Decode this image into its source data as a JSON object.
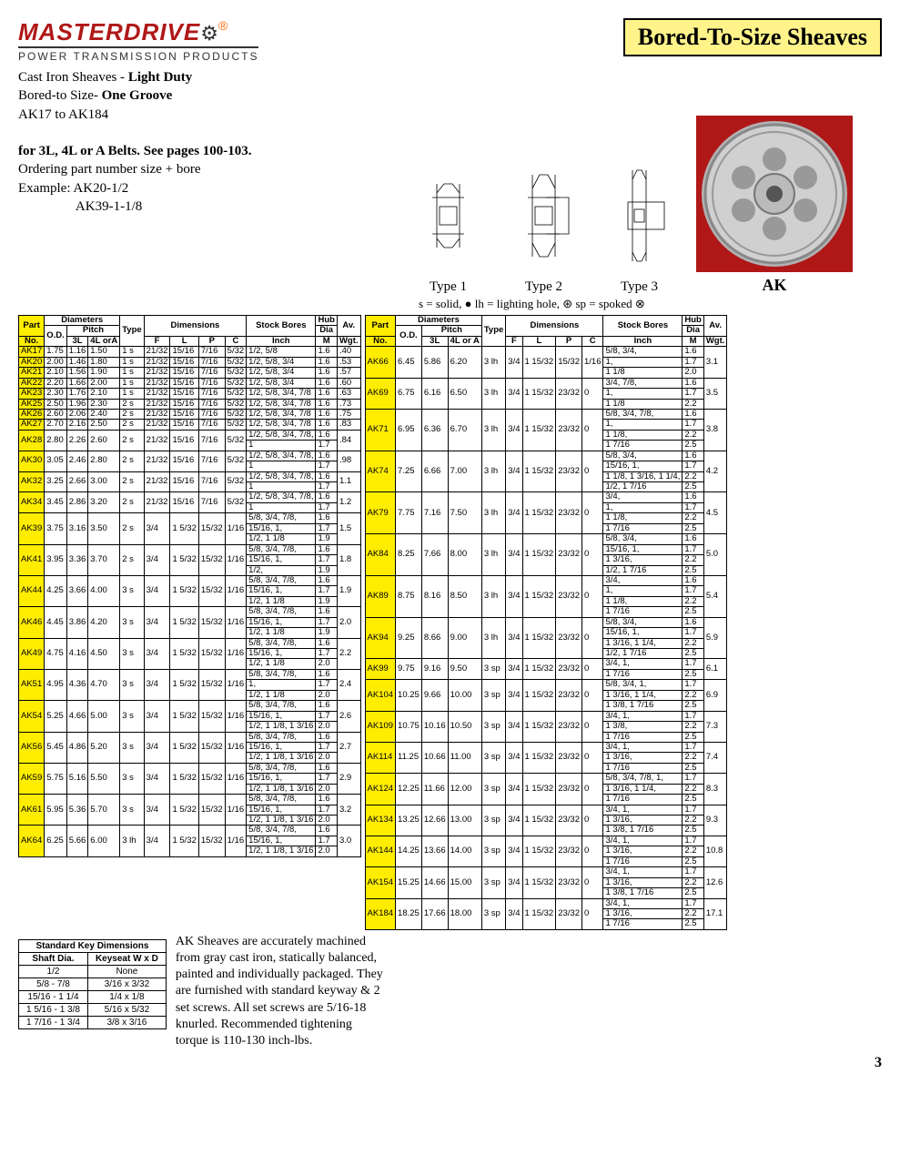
{
  "logo": {
    "main": "MASTERDRIVE",
    "sub": "POWER TRANSMISSION PRODUCTS"
  },
  "title": "Bored-To-Size Sheaves",
  "intro": {
    "l1a": "Cast Iron Sheaves - ",
    "l1b": "Light Duty",
    "l2a": "Bored-to Size- ",
    "l2b": "One Groove",
    "l3": "AK17 to AK184",
    "l4": "for 3L, 4L or A Belts. See pages 100-103.",
    "l5": "Ordering part number size + bore",
    "l6": "Example:  AK20-1/2",
    "l7": "                 AK39-1-1/8"
  },
  "typeLabels": [
    "Type 1",
    "Type 2",
    "Type 3"
  ],
  "photoLabel": "AK",
  "legend": "s = solid, ● lh = lighting hole, ⊛ sp = spoked ⊗",
  "headers": {
    "diameters": "Diameters",
    "pitch": "Pitch",
    "dimensions": "Dimensions",
    "stockBores": "Stock Bores",
    "hub": "Hub",
    "part": "Part",
    "no": "No.",
    "od": "O.D.",
    "3l": "3L",
    "4lora": "4L orA",
    "4lora2": "4L or A",
    "type": "Type",
    "f": "F",
    "l": "L",
    "p": "P",
    "c": "C",
    "inch": "Inch",
    "dia": "Dia",
    "m": "M",
    "av": "Av.",
    "wgt": "Wgt."
  },
  "table1": [
    {
      "pn": "AK17",
      "od": "1.75",
      "p3": "1.16",
      "p4": "1.50",
      "ty": "1 s",
      "f": "21/32",
      "l": "15/16",
      "p": "7/16",
      "c": "5/32",
      "bores": [
        "1/2, 5/8"
      ],
      "dia": [
        "1.6"
      ],
      "wgt": ".40"
    },
    {
      "pn": "AK20",
      "od": "2.00",
      "p3": "1.46",
      "p4": "1.80",
      "ty": "1 s",
      "f": "21/32",
      "l": "15/16",
      "p": "7/16",
      "c": "5/32",
      "bores": [
        "1/2, 5/8, 3/4"
      ],
      "dia": [
        "1.6"
      ],
      "wgt": ".53"
    },
    {
      "pn": "AK21",
      "od": "2.10",
      "p3": "1.56",
      "p4": "1.90",
      "ty": "1 s",
      "f": "21/32",
      "l": "15/16",
      "p": "7/16",
      "c": "5/32",
      "bores": [
        "1/2, 5/8, 3/4"
      ],
      "dia": [
        "1.6"
      ],
      "wgt": ".57"
    },
    {
      "pn": "AK22",
      "od": "2.20",
      "p3": "1.66",
      "p4": "2.00",
      "ty": "1 s",
      "f": "21/32",
      "l": "15/16",
      "p": "7/16",
      "c": "5/32",
      "bores": [
        "1/2, 5/8, 3/4"
      ],
      "dia": [
        "1.6"
      ],
      "wgt": ".60"
    },
    {
      "pn": "AK23",
      "od": "2.30",
      "p3": "1.76",
      "p4": "2.10",
      "ty": "1 s",
      "f": "21/32",
      "l": "15/16",
      "p": "7/16",
      "c": "5/32",
      "bores": [
        "1/2, 5/8, 3/4, 7/8"
      ],
      "dia": [
        "1.6"
      ],
      "wgt": ".63"
    },
    {
      "pn": "AK25",
      "od": "2.50",
      "p3": "1.96",
      "p4": "2.30",
      "ty": "2 s",
      "f": "21/32",
      "l": "15/16",
      "p": "7/16",
      "c": "5/32",
      "bores": [
        "1/2, 5/8, 3/4, 7/8"
      ],
      "dia": [
        "1.6"
      ],
      "wgt": ".73"
    },
    {
      "pn": "AK26",
      "od": "2.60",
      "p3": "2.06",
      "p4": "2.40",
      "ty": "2 s",
      "f": "21/32",
      "l": "15/16",
      "p": "7/16",
      "c": "5/32",
      "bores": [
        "1/2, 5/8, 3/4, 7/8"
      ],
      "dia": [
        "1.6"
      ],
      "wgt": ".75"
    },
    {
      "pn": "AK27",
      "od": "2.70",
      "p3": "2.16",
      "p4": "2.50",
      "ty": "2 s",
      "f": "21/32",
      "l": "15/16",
      "p": "7/16",
      "c": "5/32",
      "bores": [
        "1/2, 5/8, 3/4, 7/8"
      ],
      "dia": [
        "1.6"
      ],
      "wgt": ".83"
    },
    {
      "pn": "AK28",
      "od": "2.80",
      "p3": "2.26",
      "p4": "2.60",
      "ty": "2 s",
      "f": "21/32",
      "l": "15/16",
      "p": "7/16",
      "c": "5/32",
      "bores": [
        "1/2, 5/8, 3/4, 7/8,",
        "1"
      ],
      "dia": [
        "1.6",
        "1.7"
      ],
      "wgt": ".84"
    },
    {
      "pn": "AK30",
      "od": "3.05",
      "p3": "2.46",
      "p4": "2.80",
      "ty": "2 s",
      "f": "21/32",
      "l": "15/16",
      "p": "7/16",
      "c": "5/32",
      "bores": [
        "1/2, 5/8, 3/4, 7/8,",
        "1"
      ],
      "dia": [
        "1.6",
        "1.7"
      ],
      "wgt": ".98"
    },
    {
      "pn": "AK32",
      "od": "3.25",
      "p3": "2.66",
      "p4": "3.00",
      "ty": "2 s",
      "f": "21/32",
      "l": "15/16",
      "p": "7/16",
      "c": "5/32",
      "bores": [
        "1/2, 5/8, 3/4, 7/8,",
        "1"
      ],
      "dia": [
        "1.6",
        "1.7"
      ],
      "wgt": "1.1"
    },
    {
      "pn": "AK34",
      "od": "3.45",
      "p3": "2.86",
      "p4": "3.20",
      "ty": "2 s",
      "f": "21/32",
      "l": "15/16",
      "p": "7/16",
      "c": "5/32",
      "bores": [
        "1/2, 5/8, 3/4, 7/8,",
        "1"
      ],
      "dia": [
        "1.6",
        "1.7"
      ],
      "wgt": "1.2"
    },
    {
      "pn": "AK39",
      "od": "3.75",
      "p3": "3.16",
      "p4": "3.50",
      "ty": "2 s",
      "f": "3/4",
      "l": "1 5/32",
      "p": "15/32",
      "c": "1/16",
      "bores": [
        "5/8, 3/4, 7/8,",
        "15/16, 1,",
        "1/2, 1 1/8"
      ],
      "dia": [
        "1.6",
        "1.7",
        "1.9"
      ],
      "wgt": "1.5"
    },
    {
      "pn": "AK41",
      "od": "3.95",
      "p3": "3.36",
      "p4": "3.70",
      "ty": "2 s",
      "f": "3/4",
      "l": "1 5/32",
      "p": "15/32",
      "c": "1/16",
      "bores": [
        "5/8, 3/4, 7/8,",
        "15/16, 1,",
        "1/2,"
      ],
      "dia": [
        "1.6",
        "1.7",
        "1.9"
      ],
      "wgt": "1.8"
    },
    {
      "pn": "AK44",
      "od": "4.25",
      "p3": "3.66",
      "p4": "4.00",
      "ty": "3 s",
      "f": "3/4",
      "l": "1 5/32",
      "p": "15/32",
      "c": "1/16",
      "bores": [
        "5/8, 3/4, 7/8,",
        "15/16, 1,",
        "1/2, 1 1/8"
      ],
      "dia": [
        "1.6",
        "1.7",
        "1.9"
      ],
      "wgt": "1.9"
    },
    {
      "pn": "AK46",
      "od": "4.45",
      "p3": "3.86",
      "p4": "4.20",
      "ty": "3 s",
      "f": "3/4",
      "l": "1 5/32",
      "p": "15/32",
      "c": "1/16",
      "bores": [
        "5/8, 3/4, 7/8,",
        "15/16, 1,",
        "1/2, 1 1/8"
      ],
      "dia": [
        "1.6",
        "1.7",
        "1.9"
      ],
      "wgt": "2.0"
    },
    {
      "pn": "AK49",
      "od": "4.75",
      "p3": "4.16",
      "p4": "4.50",
      "ty": "3 s",
      "f": "3/4",
      "l": "1 5/32",
      "p": "15/32",
      "c": "1/16",
      "bores": [
        "5/8, 3/4, 7/8,",
        "15/16, 1,",
        "1/2, 1 1/8"
      ],
      "dia": [
        "1.6",
        "1.7",
        "2.0"
      ],
      "wgt": "2.2"
    },
    {
      "pn": "AK51",
      "od": "4.95",
      "p3": "4.36",
      "p4": "4.70",
      "ty": "3 s",
      "f": "3/4",
      "l": "1 5/32",
      "p": "15/32",
      "c": "1/16",
      "bores": [
        "5/8, 3/4, 7/8,",
        "1,",
        "1/2, 1 1/8"
      ],
      "dia": [
        "1.6",
        "1.7",
        "2.0"
      ],
      "wgt": "2.4"
    },
    {
      "pn": "AK54",
      "od": "5.25",
      "p3": "4.66",
      "p4": "5.00",
      "ty": "3 s",
      "f": "3/4",
      "l": "1 5/32",
      "p": "15/32",
      "c": "1/16",
      "bores": [
        "5/8, 3/4, 7/8,",
        "15/16, 1,",
        "1/2, 1 1/8, 1 3/16"
      ],
      "dia": [
        "1.6",
        "1.7",
        "2.0"
      ],
      "wgt": "2.6"
    },
    {
      "pn": "AK56",
      "od": "5.45",
      "p3": "4.86",
      "p4": "5.20",
      "ty": "3 s",
      "f": "3/4",
      "l": "1 5/32",
      "p": "15/32",
      "c": "1/16",
      "bores": [
        "5/8, 3/4, 7/8,",
        "15/16, 1,",
        "1/2, 1 1/8, 1 3/16"
      ],
      "dia": [
        "1.6",
        "1.7",
        "2.0"
      ],
      "wgt": "2.7"
    },
    {
      "pn": "AK59",
      "od": "5.75",
      "p3": "5.16",
      "p4": "5.50",
      "ty": "3 s",
      "f": "3/4",
      "l": "1 5/32",
      "p": "15/32",
      "c": "1/16",
      "bores": [
        "5/8, 3/4, 7/8,",
        "15/16, 1,",
        "1/2, 1 1/8, 1 3/16"
      ],
      "dia": [
        "1.6",
        "1.7",
        "2.0"
      ],
      "wgt": "2.9"
    },
    {
      "pn": "AK61",
      "od": "5.95",
      "p3": "5.36",
      "p4": "5.70",
      "ty": "3 s",
      "f": "3/4",
      "l": "1 5/32",
      "p": "15/32",
      "c": "1/16",
      "bores": [
        "5/8, 3/4, 7/8,",
        "15/16, 1,",
        "1/2, 1 1/8, 1 3/16"
      ],
      "dia": [
        "1.6",
        "1.7",
        "2.0"
      ],
      "wgt": "3.2"
    },
    {
      "pn": "AK64",
      "od": "6.25",
      "p3": "5.66",
      "p4": "6.00",
      "ty": "3 lh",
      "f": "3/4",
      "l": "1 5/32",
      "p": "15/32",
      "c": "1/16",
      "bores": [
        "5/8, 3/4, 7/8,",
        "15/16, 1,",
        "1/2, 1 1/8, 1 3/16"
      ],
      "dia": [
        "1.6",
        "1.7",
        "2.0"
      ],
      "wgt": "3.0"
    }
  ],
  "table2": [
    {
      "pn": "AK66",
      "od": "6.45",
      "p3": "5.86",
      "p4": "6.20",
      "ty": "3 lh",
      "f": "3/4",
      "l": "1 15/32",
      "p": "15/32",
      "c": "1/16",
      "bores": [
        "5/8, 3/4,",
        "1,",
        "1 1/8"
      ],
      "dia": [
        "1.6",
        "1.7",
        "2.0"
      ],
      "wgt": "3.1"
    },
    {
      "pn": "AK69",
      "od": "6.75",
      "p3": "6.16",
      "p4": "6.50",
      "ty": "3 lh",
      "f": "3/4",
      "l": "1 15/32",
      "p": "23/32",
      "c": "0",
      "bores": [
        "3/4, 7/8,",
        "1,",
        "1 1/8"
      ],
      "dia": [
        "1.6",
        "1.7",
        "2.2"
      ],
      "wgt": "3.5"
    },
    {
      "pn": "AK71",
      "od": "6.95",
      "p3": "6.36",
      "p4": "6.70",
      "ty": "3 lh",
      "f": "3/4",
      "l": "1 15/32",
      "p": "23/32",
      "c": "0",
      "bores": [
        "5/8, 3/4, 7/8,",
        "1,",
        "1 1/8,",
        "1 7/16"
      ],
      "dia": [
        "1.6",
        "1.7",
        "2.2",
        "2.5"
      ],
      "wgt": "3.8"
    },
    {
      "pn": "AK74",
      "od": "7.25",
      "p3": "6.66",
      "p4": "7.00",
      "ty": "3 lh",
      "f": "3/4",
      "l": "1 15/32",
      "p": "23/32",
      "c": "0",
      "bores": [
        "5/8, 3/4,",
        "15/16, 1,",
        "1 1/8, 1 3/16, 1 1/4,",
        "1/2, 1 7/16"
      ],
      "dia": [
        "1.6",
        "1.7",
        "2.2",
        "2.5"
      ],
      "wgt": "4.2"
    },
    {
      "pn": "AK79",
      "od": "7.75",
      "p3": "7.16",
      "p4": "7.50",
      "ty": "3 lh",
      "f": "3/4",
      "l": "1 15/32",
      "p": "23/32",
      "c": "0",
      "bores": [
        "3/4,",
        "1,",
        "1 1/8,",
        "1 7/16"
      ],
      "dia": [
        "1.6",
        "1.7",
        "2.2",
        "2.5"
      ],
      "wgt": "4.5"
    },
    {
      "pn": "AK84",
      "od": "8.25",
      "p3": "7.66",
      "p4": "8.00",
      "ty": "3 lh",
      "f": "3/4",
      "l": "1 15/32",
      "p": "23/32",
      "c": "0",
      "bores": [
        "5/8, 3/4,",
        "15/16, 1,",
        "1 3/16,",
        "1/2, 1 7/16"
      ],
      "dia": [
        "1.6",
        "1.7",
        "2.2",
        "2.5"
      ],
      "wgt": "5.0"
    },
    {
      "pn": "AK89",
      "od": "8.75",
      "p3": "8.16",
      "p4": "8.50",
      "ty": "3 lh",
      "f": "3/4",
      "l": "1 15/32",
      "p": "23/32",
      "c": "0",
      "bores": [
        "3/4,",
        "1,",
        "1 1/8,",
        "1 7/16"
      ],
      "dia": [
        "1.6",
        "1.7",
        "2.2",
        "2.5"
      ],
      "wgt": "5.4"
    },
    {
      "pn": "AK94",
      "od": "9.25",
      "p3": "8.66",
      "p4": "9.00",
      "ty": "3 lh",
      "f": "3/4",
      "l": "1 15/32",
      "p": "23/32",
      "c": "0",
      "bores": [
        "5/8, 3/4,",
        "15/16, 1,",
        "1 3/16, 1 1/4,",
        "1/2, 1 7/16"
      ],
      "dia": [
        "1.6",
        "1.7",
        "2.2",
        "2.5"
      ],
      "wgt": "5.9"
    },
    {
      "pn": "AK99",
      "od": "9.75",
      "p3": "9.16",
      "p4": "9.50",
      "ty": "3 sp",
      "f": "3/4",
      "l": "1 15/32",
      "p": "23/32",
      "c": "0",
      "bores": [
        "3/4, 1,",
        "1 7/16"
      ],
      "dia": [
        "1.7",
        "2.5"
      ],
      "wgt": "6.1"
    },
    {
      "pn": "AK104",
      "od": "10.25",
      "p3": "9.66",
      "p4": "10.00",
      "ty": "3 sp",
      "f": "3/4",
      "l": "1 15/32",
      "p": "23/32",
      "c": "0",
      "bores": [
        "5/8, 3/4, 1,",
        "1 3/16, 1 1/4,",
        "1 3/8, 1 7/16"
      ],
      "dia": [
        "1.7",
        "2.2",
        "2.5"
      ],
      "wgt": "6.9"
    },
    {
      "pn": "AK109",
      "od": "10.75",
      "p3": "10.16",
      "p4": "10.50",
      "ty": "3 sp",
      "f": "3/4",
      "l": "1 15/32",
      "p": "23/32",
      "c": "0",
      "bores": [
        "3/4, 1,",
        "1 3/8,",
        "1 7/16"
      ],
      "dia": [
        "1.7",
        "2.2",
        "2.5"
      ],
      "wgt": "7.3"
    },
    {
      "pn": "AK114",
      "od": "11.25",
      "p3": "10.66",
      "p4": "11.00",
      "ty": "3 sp",
      "f": "3/4",
      "l": "1 15/32",
      "p": "23/32",
      "c": "0",
      "bores": [
        "3/4, 1,",
        "1 3/16,",
        "1 7/16"
      ],
      "dia": [
        "1.7",
        "2.2",
        "2.5"
      ],
      "wgt": "7.4"
    },
    {
      "pn": "AK124",
      "od": "12.25",
      "p3": "11.66",
      "p4": "12.00",
      "ty": "3 sp",
      "f": "3/4",
      "l": "1 15/32",
      "p": "23/32",
      "c": "0",
      "bores": [
        "5/8, 3/4, 7/8, 1,",
        "1 3/16, 1 1/4,",
        "1 7/16"
      ],
      "dia": [
        "1.7",
        "2.2",
        "2.5"
      ],
      "wgt": "8.3"
    },
    {
      "pn": "AK134",
      "od": "13.25",
      "p3": "12.66",
      "p4": "13.00",
      "ty": "3 sp",
      "f": "3/4",
      "l": "1 15/32",
      "p": "23/32",
      "c": "0",
      "bores": [
        "3/4, 1,",
        "1 3/16,",
        "1 3/8, 1 7/16"
      ],
      "dia": [
        "1.7",
        "2.2",
        "2.5"
      ],
      "wgt": "9.3"
    },
    {
      "pn": "AK144",
      "od": "14.25",
      "p3": "13.66",
      "p4": "14.00",
      "ty": "3 sp",
      "f": "3/4",
      "l": "1 15/32",
      "p": "23/32",
      "c": "0",
      "bores": [
        "3/4, 1,",
        "1 3/16,",
        "1 7/16"
      ],
      "dia": [
        "1.7",
        "2.2",
        "2.5"
      ],
      "wgt": "10.8"
    },
    {
      "pn": "AK154",
      "od": "15.25",
      "p3": "14.66",
      "p4": "15.00",
      "ty": "3 sp",
      "f": "3/4",
      "l": "1 15/32",
      "p": "23/32",
      "c": "0",
      "bores": [
        "3/4, 1,",
        "1 3/16,",
        "1 3/8, 1 7/16"
      ],
      "dia": [
        "1.7",
        "2.2",
        "2.5"
      ],
      "wgt": "12.6"
    },
    {
      "pn": "AK184",
      "od": "18.25",
      "p3": "17.66",
      "p4": "18.00",
      "ty": "3 sp",
      "f": "3/4",
      "l": "1 15/32",
      "p": "23/32",
      "c": "0",
      "bores": [
        "3/4, 1,",
        "1 3/16,",
        "1 7/16"
      ],
      "dia": [
        "1.7",
        "2.2",
        "2.5"
      ],
      "wgt": "17.1"
    }
  ],
  "keyTable": {
    "title": "Standard Key Dimensions",
    "h1": "Shaft Dia.",
    "h2": "Keyseat W x D",
    "rows": [
      [
        "1/2",
        "None"
      ],
      [
        "5/8 - 7/8",
        "3/16 x 3/32"
      ],
      [
        "15/16 - 1 1/4",
        "1/4 x 1/8"
      ],
      [
        "1 5/16 - 1 3/8",
        "5/16 x 5/32"
      ],
      [
        "1 7/16 - 1 3/4",
        "3/8 x 3/16"
      ]
    ]
  },
  "bottomText": "AK Sheaves are accurately machined from gray cast iron, statically balanced, painted and individually packaged.  They are furnished with standard keyway & 2 set screws.  All set screws are 5/16-18 knurled.  Recommended tightening torque is 110-130 inch-lbs.",
  "pageNum": "3"
}
